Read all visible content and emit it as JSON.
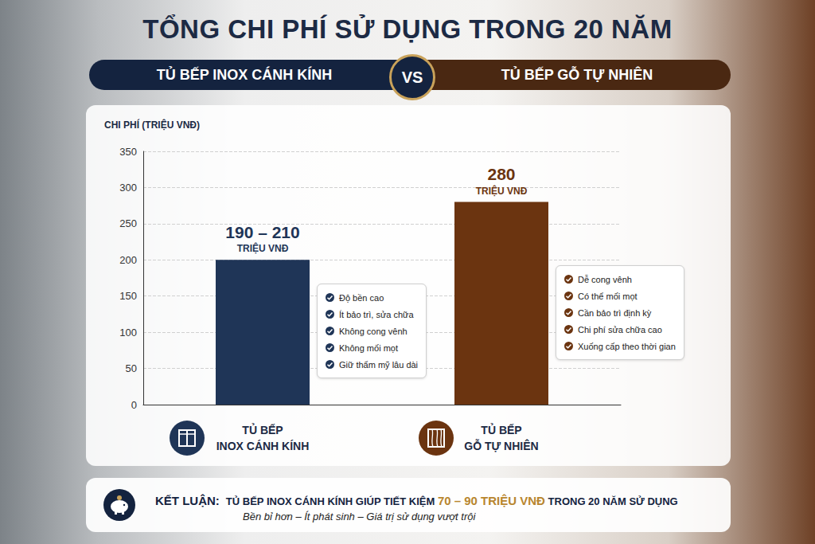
{
  "chart_data": {
    "type": "bar",
    "title": "TỔNG CHI PHÍ SỬ DỤNG TRONG 20 NĂM",
    "vs": "VS",
    "y_axis_label": "CHI PHÍ (TRIỆU VNĐ)",
    "categories": [
      "TỦ BẾP INOX CÁNH KÍNH",
      "TỦ BẾP GỖ TỰ NHIÊN"
    ],
    "values": [
      200,
      280
    ],
    "value_labels": [
      "190 – 210",
      "280"
    ],
    "value_unit": "TRIỆU VNĐ",
    "colors": [
      "#1f3557",
      "#6b3410"
    ],
    "data_labels": true,
    "ylim": [
      0,
      350
    ],
    "yticks": [
      0,
      50,
      100,
      150,
      200,
      250,
      300,
      350
    ],
    "grid": true,
    "notes": [
      [
        "Độ bền cao",
        "Ít bảo trì, sửa chữa",
        "Không cong vênh",
        "Không mối mọt",
        "Giữ thẩm mỹ lâu dài"
      ],
      [
        "Dễ cong vênh",
        "Có thể mối mọt",
        "Cần bảo trì định kỳ",
        "Chi phí sửa chữa cao",
        "Xuống cấp theo thời gian"
      ]
    ],
    "conclusion": {
      "label": "KẾT LUẬN:",
      "text": [
        "TỦ BẾP INOX CÁNH KÍNH GIÚP TIẾT KIỆM",
        "70 – 90 TRIỆU VNĐ",
        "TRONG 20 NĂM SỬ DỤNG"
      ],
      "subtitle": "Bền bỉ hơn – Ít phát sinh – Giá trị sử dụng vượt trội"
    }
  }
}
